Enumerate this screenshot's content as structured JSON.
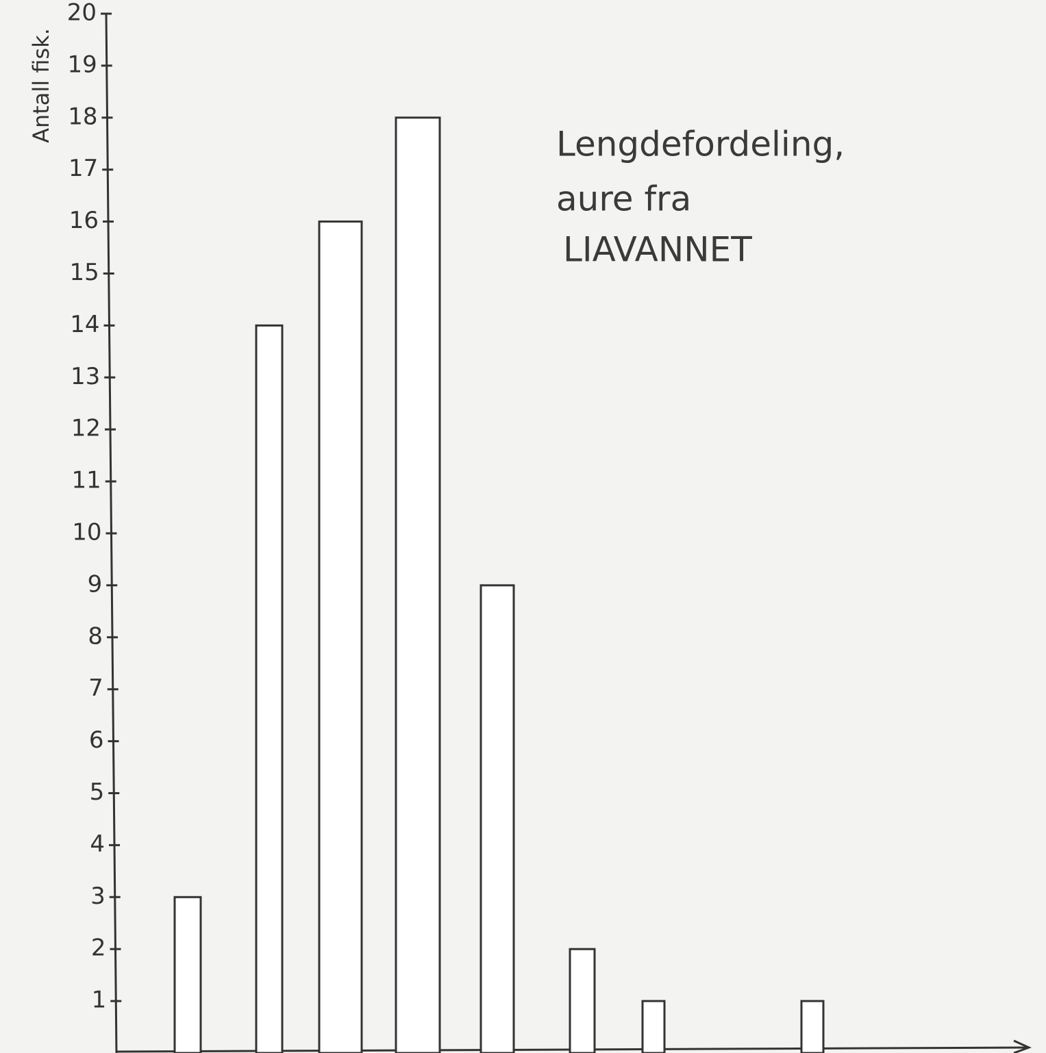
{
  "chart_data": {
    "type": "bar",
    "title": [
      "Lengdefordeling,",
      "aure fra",
      "LIAVANNET"
    ],
    "y_label": "Antall fisk.",
    "categories": [
      null,
      null,
      null,
      null,
      null,
      null,
      null,
      null
    ],
    "values": [
      3,
      14,
      16,
      18,
      9,
      2,
      1,
      1
    ],
    "color": "#ffffff",
    "ylim": [
      0,
      20
    ],
    "yticks": [
      1,
      2,
      3,
      4,
      5,
      6,
      7,
      8,
      9,
      10,
      11,
      12,
      13,
      14,
      15,
      16,
      17,
      18,
      19,
      20
    ],
    "grid": false
  }
}
